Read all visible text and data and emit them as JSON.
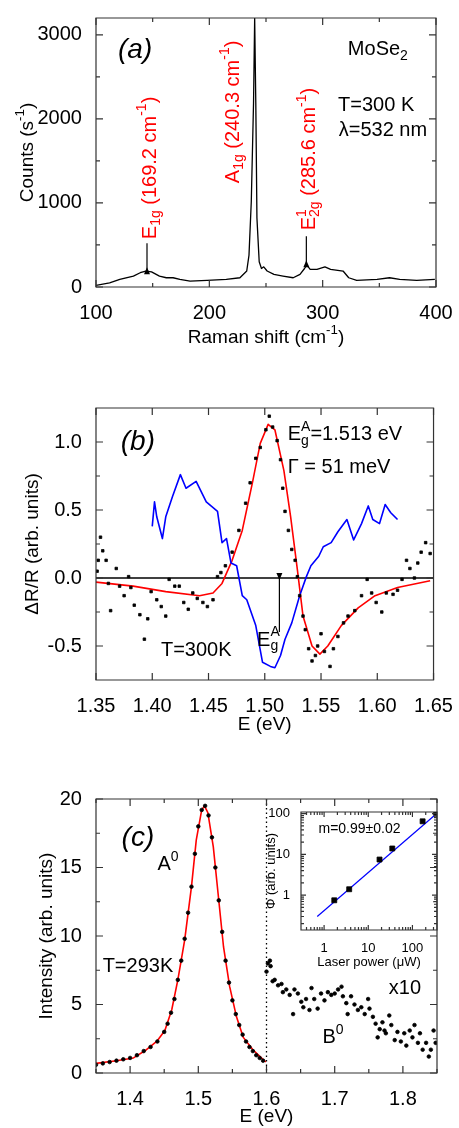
{
  "chart_data": [
    {
      "type": "line",
      "xlabel": "Raman shift (cm$^{-1}$)",
      "ylabel": "Counts (s$^{-1}$)",
      "annotations": [
        "(a)",
        "MoSe$_{2}$",
        "T=300 K",
        "λ=532 nm",
        {
          "text": "E$_{1g}$ (169.2 cm$^{-1}$)",
          "x": 145,
          "y": 200
        },
        "A$_{1g}$ (240.3 cm$^{-1}$)",
        {
          "text": "E$^{1}$$_{2g}$ (285.6 cm$^{-1}$)",
          "x": 285.6,
          "y": 270
        }
      ],
      "x": [
        100,
        112,
        121,
        133,
        139,
        144,
        149,
        156,
        162,
        168,
        174,
        183,
        198,
        215,
        227,
        233,
        235,
        237,
        239,
        240,
        241,
        242,
        244,
        246,
        248,
        251,
        257,
        265,
        274,
        280,
        284,
        286,
        289,
        295,
        302,
        307,
        318,
        323,
        330,
        348,
        359,
        368,
        383,
        399
      ],
      "values": [
        20,
        50,
        90,
        130,
        170,
        190,
        180,
        130,
        110,
        110,
        90,
        70,
        80,
        90,
        110,
        190,
        380,
        1010,
        2190,
        3200,
        2190,
        820,
        300,
        220,
        240,
        190,
        150,
        130,
        110,
        150,
        220,
        260,
        210,
        210,
        240,
        210,
        190,
        110,
        80,
        90,
        110,
        90,
        80,
        90
      ],
      "color": "#000000",
      "xlim": [
        100,
        400
      ],
      "xticks": [
        100,
        {
          "value": 150,
          "label": null
        },
        200,
        {
          "value": 250,
          "label": null
        },
        300,
        {
          "value": 350,
          "label": null
        },
        400
      ],
      "ylim": [
        0,
        3200
      ],
      "yticks": [
        0,
        {
          "value": 500,
          "label": null
        },
        1000,
        {
          "value": 1500,
          "label": null
        },
        2000,
        {
          "value": 2500,
          "label": null
        },
        3000
      ]
    },
    {
      "type": "scatter",
      "xlabel": "E (eV)",
      "ylabel": "ΔR/R (arb. units)",
      "annotations": [
        "(b)",
        "E$^{A}$$_{g}$=1.513 eV",
        "Γ = 51 meV",
        "T=300K",
        {
          "text": "E$^{A}$$_{g}$",
          "x": 1.513,
          "y": 0
        }
      ],
      "series": [
        {
          "type": "scatter",
          "marker": "square",
          "color": "#000000",
          "x": [
            1.351,
            1.352,
            1.354,
            1.356,
            1.359,
            1.361,
            1.363,
            1.368,
            1.371,
            1.375,
            1.379,
            1.381,
            1.384,
            1.389,
            1.393,
            1.396,
            1.399,
            1.404,
            1.408,
            1.412,
            1.415,
            1.42,
            1.424,
            1.428,
            1.432,
            1.436,
            1.44,
            1.445,
            1.449,
            1.454,
            1.458,
            1.461,
            1.465,
            1.471,
            1.477,
            1.483,
            1.487,
            1.492,
            1.496,
            1.501,
            1.504,
            1.507,
            1.511,
            1.514,
            1.516,
            1.518,
            1.521,
            1.524,
            1.527,
            1.529,
            1.531,
            1.534,
            1.536,
            1.539,
            1.542,
            1.545,
            1.547,
            1.55,
            1.553,
            1.558,
            1.561,
            1.565,
            1.57,
            1.574,
            1.58,
            1.586,
            1.591,
            1.595,
            1.599,
            1.604,
            1.608,
            1.614,
            1.618,
            1.622,
            1.626,
            1.629,
            1.633,
            1.636,
            1.639,
            1.643,
            1.647
          ],
          "values": [
            0.05,
            0.13,
            0.3,
            0.2,
            0.13,
            -0.04,
            -0.24,
            0.07,
            -0.06,
            -0.13,
            0.01,
            -0.07,
            -0.2,
            -0.27,
            -0.45,
            -0.3,
            -0.1,
            -0.16,
            -0.21,
            -0.28,
            -0.01,
            -0.06,
            -0.06,
            -0.18,
            -0.23,
            -0.11,
            -0.15,
            -0.18,
            -0.21,
            -0.16,
            0.01,
            0.04,
            0.09,
            0.19,
            0.35,
            0.55,
            0.7,
            0.88,
            0.96,
            1.09,
            1.19,
            1.11,
            1.01,
            0.87,
            0.66,
            0.49,
            0.35,
            0.21,
            0.13,
            0.01,
            -0.13,
            -0.28,
            -0.38,
            -0.52,
            -0.61,
            -0.57,
            -0.5,
            -0.41,
            -0.54,
            -0.65,
            -0.52,
            -0.43,
            -0.33,
            -0.28,
            -0.24,
            -0.13,
            -0.01,
            -0.11,
            -0.18,
            -0.25,
            -0.11,
            -0.12,
            -0.09,
            -0.01,
            0.13,
            0.07,
            0.0,
            0.11,
            0.19,
            0.26,
            0.18
          ]
        },
        {
          "type": "line",
          "color": "#0000ff",
          "x": [
            1.4,
            1.402,
            1.404,
            1.409,
            1.412,
            1.418,
            1.425,
            1.43,
            1.439,
            1.448,
            1.458,
            1.462,
            1.466,
            1.47,
            1.475,
            1.48,
            1.484,
            1.492,
            1.498,
            1.505,
            1.509,
            1.514,
            1.518,
            1.524,
            1.531,
            1.537,
            1.541,
            1.548,
            1.552,
            1.559,
            1.565,
            1.573,
            1.579,
            1.586,
            1.592,
            1.596,
            1.602,
            1.607,
            1.612,
            1.618
          ],
          "values": [
            0.38,
            0.56,
            0.45,
            0.29,
            0.45,
            0.6,
            0.76,
            0.66,
            0.71,
            0.56,
            0.49,
            0.26,
            0.29,
            0.11,
            0.09,
            -0.13,
            -0.16,
            -0.35,
            -0.62,
            -0.65,
            -0.66,
            -0.57,
            -0.45,
            -0.33,
            -0.13,
            0.01,
            0.09,
            0.16,
            0.23,
            0.26,
            0.34,
            0.43,
            0.28,
            0.4,
            0.53,
            0.43,
            0.4,
            0.54,
            0.48,
            0.43
          ]
        },
        {
          "type": "line",
          "color": "#ff0000",
          "x": [
            1.35,
            1.383,
            1.412,
            1.442,
            1.454,
            1.462,
            1.471,
            1.48,
            1.489,
            1.496,
            1.503,
            1.509,
            1.517,
            1.523,
            1.529,
            1.534,
            1.542,
            1.549,
            1.556,
            1.568,
            1.583,
            1.598,
            1.618,
            1.647
          ],
          "values": [
            -0.03,
            -0.06,
            -0.1,
            -0.13,
            -0.11,
            -0.04,
            0.13,
            0.35,
            0.7,
            0.99,
            1.13,
            1.09,
            0.79,
            0.45,
            0.06,
            -0.28,
            -0.5,
            -0.56,
            -0.5,
            -0.35,
            -0.22,
            -0.13,
            -0.07,
            -0.02
          ]
        }
      ],
      "ref_lines": [
        {
          "axis": "y",
          "value": 0
        }
      ],
      "xlim": [
        1.35,
        1.65
      ],
      "xticks": [
        1.35,
        {
          "value": 1.4,
          "label": "1.40"
        },
        1.45,
        {
          "value": 1.5,
          "label": "1.50"
        },
        1.55,
        {
          "value": 1.6,
          "label": "1.60"
        },
        1.65
      ],
      "ylim": [
        -0.75,
        1.25
      ],
      "yticks": [
        -0.5,
        {
          "value": -0.25,
          "label": null
        },
        {
          "value": 0,
          "label": "0.0"
        },
        {
          "value": 0.25,
          "label": null
        },
        0.5,
        {
          "value": 0.75,
          "label": null
        },
        {
          "value": 1,
          "label": "1.0"
        }
      ]
    },
    {
      "type": "scatter",
      "xlabel": "E (eV)",
      "ylabel": "Intensity (arb. units)",
      "annotations": [
        "(c)",
        "A$^{0}$",
        "T=293K",
        "x10",
        "B$^{0}$"
      ],
      "series": [
        {
          "type": "scatter",
          "marker": "circle",
          "color": "#000000",
          "x": [
            1.35,
            1.36,
            1.37,
            1.38,
            1.39,
            1.4,
            1.41,
            1.42,
            1.43,
            1.44,
            1.45,
            1.455,
            1.46,
            1.465,
            1.47,
            1.475,
            1.48,
            1.485,
            1.49,
            1.495,
            1.5,
            1.505,
            1.51,
            1.515,
            1.52,
            1.525,
            1.53,
            1.535,
            1.54,
            1.545,
            1.55,
            1.555,
            1.56,
            1.565,
            1.57,
            1.575,
            1.58,
            1.585,
            1.59,
            1.595,
            1.6,
            1.602,
            1.605,
            1.606,
            1.609,
            1.612,
            1.617,
            1.622,
            1.624,
            1.629,
            1.634,
            1.639,
            1.641,
            1.646,
            1.651,
            1.654,
            1.658,
            1.663,
            1.666,
            1.67,
            1.675,
            1.68,
            1.685,
            1.69,
            1.695,
            1.7,
            1.705,
            1.71,
            1.712,
            1.717,
            1.719,
            1.724,
            1.729,
            1.734,
            1.739,
            1.744,
            1.749,
            1.751,
            1.756,
            1.76,
            1.763,
            1.766,
            1.77,
            1.773,
            1.775,
            1.78,
            1.783,
            1.788,
            1.792,
            1.797,
            1.802,
            1.805,
            1.81,
            1.814,
            1.817,
            1.822,
            1.825,
            1.829,
            1.834,
            1.838,
            1.841,
            1.845,
            1.848
          ],
          "values": [
            0.6,
            0.7,
            0.8,
            0.9,
            1.0,
            1.1,
            1.3,
            1.6,
            1.9,
            2.3,
            3.0,
            3.6,
            4.4,
            5.4,
            6.8,
            8.2,
            9.8,
            11.7,
            13.6,
            16.0,
            18.0,
            19.2,
            19.5,
            18.8,
            17.2,
            15.0,
            12.6,
            10.3,
            8.2,
            6.6,
            5.3,
            4.3,
            3.5,
            2.8,
            2.3,
            1.9,
            1.6,
            1.3,
            1.1,
            0.9,
            7.4,
            8.0,
            8.2,
            7.8,
            6.7,
            6.8,
            6.4,
            6.5,
            5.9,
            6.1,
            5.7,
            4.3,
            6.1,
            5.8,
            5.2,
            4.8,
            5.4,
            4.6,
            6.2,
            5.4,
            4.7,
            5.8,
            5.3,
            5.9,
            5.7,
            5.8,
            6.1,
            6.3,
            5.6,
            5.1,
            4.3,
            5.6,
            5.0,
            4.6,
            4.8,
            4.3,
            5.4,
            4.7,
            4.1,
            3.6,
            2.6,
            3.2,
            3.7,
            3.1,
            2.9,
            4.2,
            3.5,
            2.4,
            3.0,
            2.3,
            2.9,
            2.0,
            3.1,
            2.6,
            3.5,
            2.2,
            2.9,
            1.7,
            2.2,
            1.2,
            1.7,
            3.1,
            2.2
          ]
        },
        {
          "type": "line",
          "color": "#ff0000",
          "x": [
            1.35,
            1.38,
            1.405,
            1.424,
            1.439,
            1.451,
            1.461,
            1.47,
            1.48,
            1.49,
            1.497,
            1.505,
            1.509,
            1.514,
            1.522,
            1.529,
            1.537,
            1.546,
            1.556,
            1.566,
            1.58,
            1.599
          ],
          "values": [
            0.7,
            0.9,
            1.1,
            1.7,
            2.3,
            3.1,
            4.6,
            6.8,
            9.7,
            13.6,
            17.0,
            19.2,
            19.5,
            19.0,
            16.5,
            13.1,
            9.2,
            6.3,
            4.1,
            2.6,
            1.7,
            0.8
          ]
        }
      ],
      "ref_lines": [
        {
          "axis": "x",
          "value": 1.6,
          "line_style": "dotted"
        }
      ],
      "xlim": [
        1.35,
        1.85
      ],
      "xticks": [
        {
          "value": 1.35,
          "label": null
        },
        1.4,
        {
          "value": 1.45,
          "label": null
        },
        1.5,
        {
          "value": 1.55,
          "label": null
        },
        1.6,
        {
          "value": 1.65,
          "label": null
        },
        1.7,
        {
          "value": 1.75,
          "label": null
        },
        1.8,
        {
          "value": 1.85,
          "label": null
        }
      ],
      "ylim": [
        0,
        20
      ],
      "yticks": [
        0,
        {
          "value": 2.5,
          "label": null
        },
        5,
        {
          "value": 7.5,
          "label": null
        },
        10,
        {
          "value": 12.5,
          "label": null
        },
        15,
        {
          "value": 17.5,
          "label": null
        },
        20
      ]
    },
    {
      "type": "scatter",
      "log": "xy",
      "xlabel": "Laser power (μW)",
      "ylabel": "Φ (arb. units)",
      "annotations": [
        "m=0.99±0.02"
      ],
      "series": [
        {
          "type": "scatter",
          "marker": "square",
          "color": "#000000",
          "x": [
            1.7,
            3.7,
            18,
            35,
            170,
            350
          ],
          "values": [
            0.75,
            1.4,
            7.5,
            14,
            65,
            100
          ]
        },
        {
          "type": "line",
          "color": "#0000ff",
          "x": [
            0.7,
            350
          ],
          "values": [
            0.3,
            100
          ]
        }
      ],
      "xlim": [
        0.34,
        360
      ],
      "xticks": [
        {
          "value": 0.4,
          "label": null
        },
        {
          "value": 0.5,
          "label": null
        },
        {
          "value": 0.6,
          "label": null
        },
        {
          "value": 0.7,
          "label": null
        },
        {
          "value": 0.8,
          "label": null
        },
        {
          "value": 0.9,
          "label": null
        },
        1,
        {
          "value": 2,
          "label": null
        },
        {
          "value": 3,
          "label": null
        },
        {
          "value": 4,
          "label": null
        },
        {
          "value": 5,
          "label": null
        },
        {
          "value": 6,
          "label": null
        },
        {
          "value": 7,
          "label": null
        },
        {
          "value": 8,
          "label": null
        },
        {
          "value": 9,
          "label": null
        },
        10,
        {
          "value": 20,
          "label": null
        },
        {
          "value": 30,
          "label": null
        },
        {
          "value": 40,
          "label": null
        },
        {
          "value": 50,
          "label": null
        },
        {
          "value": 60,
          "label": null
        },
        {
          "value": 70,
          "label": null
        },
        {
          "value": 80,
          "label": null
        },
        {
          "value": 90,
          "label": null
        },
        100,
        {
          "value": 200,
          "label": null
        },
        {
          "value": 300,
          "label": null
        }
      ],
      "ylim": [
        0.14,
        110
      ],
      "yticks": [
        {
          "value": 0.2,
          "label": null
        },
        {
          "value": 0.3,
          "label": null
        },
        {
          "value": 0.4,
          "label": null
        },
        {
          "value": 0.5,
          "label": null
        },
        {
          "value": 0.6,
          "label": null
        },
        {
          "value": 0.7,
          "label": null
        },
        {
          "value": 0.8,
          "label": null
        },
        {
          "value": 0.9,
          "label": null
        },
        1,
        {
          "value": 2,
          "label": null
        },
        {
          "value": 3,
          "label": null
        },
        {
          "value": 4,
          "label": null
        },
        {
          "value": 5,
          "label": null
        },
        {
          "value": 6,
          "label": null
        },
        {
          "value": 7,
          "label": null
        },
        {
          "value": 8,
          "label": null
        },
        {
          "value": 9,
          "label": null
        },
        10,
        {
          "value": 20,
          "label": null
        },
        {
          "value": 30,
          "label": null
        },
        {
          "value": 40,
          "label": null
        },
        {
          "value": 50,
          "label": null
        },
        {
          "value": 60,
          "label": null
        },
        {
          "value": 70,
          "label": null
        },
        {
          "value": 80,
          "label": null
        },
        {
          "value": 90,
          "label": null
        },
        100
      ]
    }
  ]
}
